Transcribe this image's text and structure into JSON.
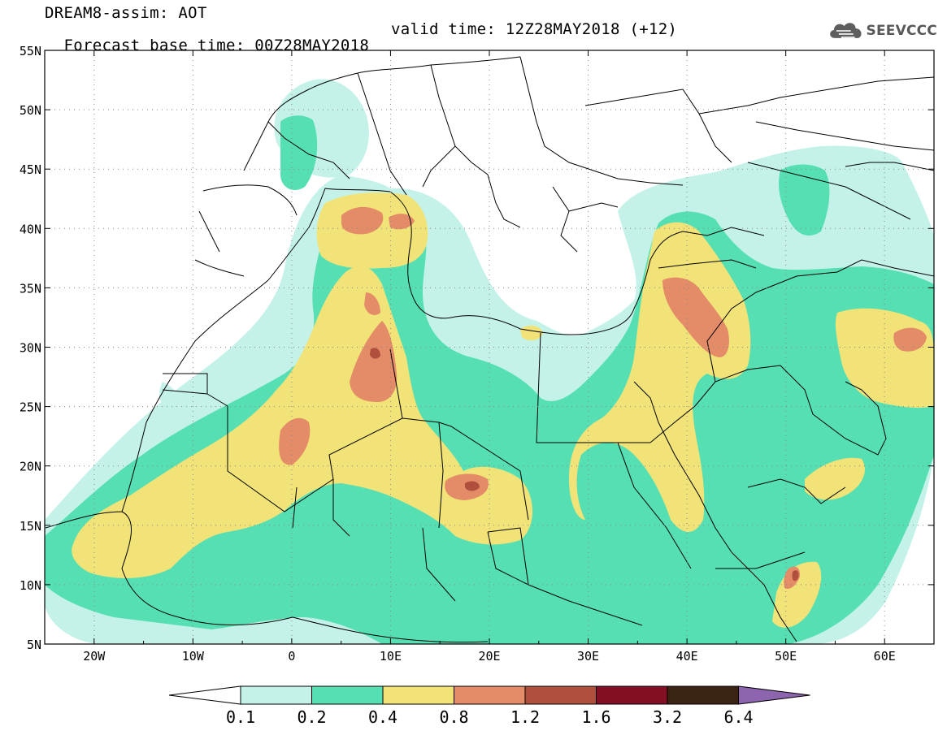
{
  "title": {
    "line1": "DREAM8-assim: AOT",
    "base_time": "Forecast base time: 00Z28MAY2018",
    "valid_time": "valid time: 12Z28MAY2018 (+12)"
  },
  "logo": {
    "text": "SEEVCCC",
    "icon": "cloud-icon"
  },
  "map": {
    "lon_range": [
      -25,
      65
    ],
    "lat_range": [
      5,
      55
    ],
    "lat_ticks": [
      "55N",
      "50N",
      "45N",
      "40N",
      "35N",
      "30N",
      "25N",
      "20N",
      "15N",
      "10N",
      "5N"
    ],
    "lon_ticks": [
      "20W",
      "10W",
      "0",
      "10E",
      "20E",
      "30E",
      "40E",
      "50E",
      "60E"
    ],
    "gridlines": "dotted"
  },
  "colorbar": {
    "labels": [
      "0.1",
      "0.2",
      "0.4",
      "0.8",
      "1.2",
      "1.6",
      "3.2",
      "6.4"
    ],
    "colors": [
      "#c4f2e8",
      "#55dfb3",
      "#f2e378",
      "#e38c67",
      "#b04f3d",
      "#820f24",
      "#3c2413",
      "#8c65ae"
    ],
    "under_color": "#ffffff"
  },
  "colors": {
    "level1": "#c4f2e8",
    "level2": "#55dfb3",
    "level3": "#f2e378",
    "level4": "#e38c67",
    "level5": "#b04f3d",
    "level6": "#820f24"
  }
}
